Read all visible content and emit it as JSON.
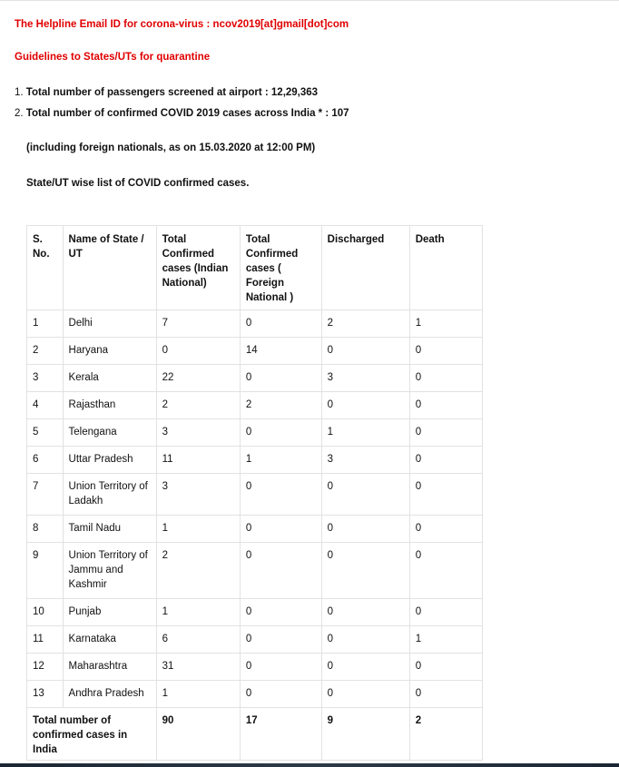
{
  "helpline": "The Helpline Email ID for corona-virus : ncov2019[at]gmail[dot]com",
  "guidelines": "Guidelines to States/UTs for quarantine",
  "stats": [
    {
      "num": "1.",
      "text": "Total number of passengers screened at airport : 12,29,363"
    },
    {
      "num": "2.",
      "text": "Total number of confirmed COVID 2019 cases across India * : 107"
    }
  ],
  "note_including": "(including foreign nationals, as on 15.03.2020 at 12:00 PM)",
  "statewise_title": "State/UT wise list of COVID confirmed cases.",
  "table": {
    "headers": {
      "sno": "S. No.",
      "name": "Name of State / UT",
      "indian": "Total Confirmed cases (Indian National)",
      "foreign": "Total Confirmed cases ( Foreign National )",
      "discharged": "Discharged",
      "death": "Death"
    },
    "rows": [
      {
        "sno": "1",
        "name": "Delhi",
        "indian": "7",
        "foreign": "0",
        "discharged": "2",
        "death": "1"
      },
      {
        "sno": "2",
        "name": "Haryana",
        "indian": "0",
        "foreign": "14",
        "discharged": "0",
        "death": "0"
      },
      {
        "sno": "3",
        "name": "Kerala",
        "indian": "22",
        "foreign": "0",
        "discharged": "3",
        "death": "0"
      },
      {
        "sno": "4",
        "name": "Rajasthan",
        "indian": "2",
        "foreign": "2",
        "discharged": "0",
        "death": "0"
      },
      {
        "sno": "5",
        "name": "Telengana",
        "indian": "3",
        "foreign": "0",
        "discharged": "1",
        "death": "0"
      },
      {
        "sno": "6",
        "name": "Uttar Pradesh",
        "indian": "11",
        "foreign": "1",
        "discharged": "3",
        "death": "0"
      },
      {
        "sno": "7",
        "name": "Union Territory of Ladakh",
        "indian": "3",
        "foreign": "0",
        "discharged": "0",
        "death": "0"
      },
      {
        "sno": "8",
        "name": "Tamil Nadu",
        "indian": "1",
        "foreign": "0",
        "discharged": "0",
        "death": "0"
      },
      {
        "sno": "9",
        "name": "Union Territory of Jammu and Kashmir",
        "indian": "2",
        "foreign": "0",
        "discharged": "0",
        "death": "0"
      },
      {
        "sno": "10",
        "name": "Punjab",
        "indian": "1",
        "foreign": "0",
        "discharged": "0",
        "death": "0"
      },
      {
        "sno": "11",
        "name": "Karnataka",
        "indian": "6",
        "foreign": "0",
        "discharged": "0",
        "death": "1"
      },
      {
        "sno": "12",
        "name": "Maharashtra",
        "indian": "31",
        "foreign": "0",
        "discharged": "0",
        "death": "0"
      },
      {
        "sno": "13",
        "name": "Andhra Pradesh",
        "indian": "1",
        "foreign": "0",
        "discharged": "0",
        "death": "0"
      }
    ],
    "total": {
      "label": "Total number of confirmed cases in India",
      "indian": "90",
      "foreign": "17",
      "discharged": "9",
      "death": "2"
    }
  }
}
